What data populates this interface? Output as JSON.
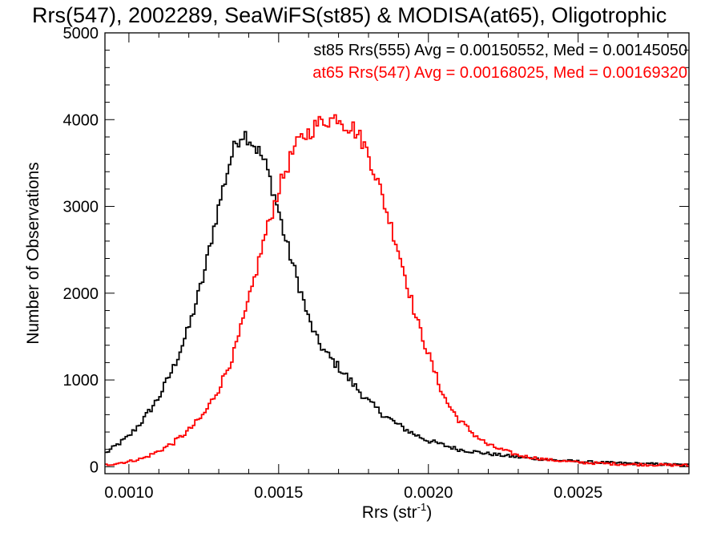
{
  "chart_data": {
    "type": "line",
    "title": "Rrs(547), 2002289, SeaWiFS(st85) & MODISA(at65), Oligotrophic",
    "xlabel_main": "Rrs (str",
    "xlabel_sup": "-1",
    "xlabel_close": ")",
    "ylabel": "Number of Observations",
    "xlim": [
      0.00092,
      0.00287
    ],
    "ylim": [
      -80,
      5000
    ],
    "x_ticks": [
      {
        "value": 0.001,
        "label": "0.0010"
      },
      {
        "value": 0.0015,
        "label": "0.0015"
      },
      {
        "value": 0.002,
        "label": "0.0020"
      },
      {
        "value": 0.0025,
        "label": "0.0025"
      }
    ],
    "y_ticks": [
      {
        "value": 0,
        "label": "0"
      },
      {
        "value": 1000,
        "label": "1000"
      },
      {
        "value": 2000,
        "label": "2000"
      },
      {
        "value": 3000,
        "label": "3000"
      },
      {
        "value": 4000,
        "label": "4000"
      },
      {
        "value": 5000,
        "label": "5000"
      }
    ],
    "legend": [
      {
        "text": "st85 Rrs(555) Avg = 0.00150552, Med = 0.00145050",
        "color": "#000000"
      },
      {
        "text": "at65 Rrs(547) Avg = 0.00168025, Med = 0.00169320",
        "color": "#ff0000"
      }
    ],
    "series": [
      {
        "color": "#000000",
        "x": [
          0.00092,
          0.001,
          0.00105,
          0.0011,
          0.00115,
          0.0012,
          0.00125,
          0.00128,
          0.00131,
          0.00134,
          0.00136,
          0.00138,
          0.0014,
          0.00142,
          0.00144,
          0.00146,
          0.00148,
          0.0015,
          0.00152,
          0.00155,
          0.00158,
          0.0016,
          0.00163,
          0.00166,
          0.0017,
          0.00175,
          0.0018,
          0.00185,
          0.0019,
          0.00195,
          0.002,
          0.0021,
          0.0022,
          0.0023,
          0.0024,
          0.0025,
          0.0026,
          0.0027,
          0.0028,
          0.00287
        ],
        "y": [
          150,
          350,
          550,
          800,
          1150,
          1600,
          2200,
          2700,
          3150,
          3550,
          3750,
          3850,
          3800,
          3700,
          3600,
          3450,
          3200,
          2950,
          2650,
          2300,
          1950,
          1700,
          1450,
          1300,
          1150,
          950,
          750,
          600,
          480,
          380,
          300,
          200,
          150,
          110,
          80,
          60,
          45,
          35,
          25,
          20
        ]
      },
      {
        "color": "#ff0000",
        "x": [
          0.00092,
          0.001,
          0.00105,
          0.0011,
          0.00115,
          0.0012,
          0.00125,
          0.0013,
          0.00135,
          0.0014,
          0.00145,
          0.0015,
          0.00155,
          0.00158,
          0.0016,
          0.00163,
          0.00166,
          0.00168,
          0.0017,
          0.00172,
          0.00175,
          0.00178,
          0.0018,
          0.00183,
          0.00186,
          0.0019,
          0.00193,
          0.00196,
          0.002,
          0.00203,
          0.00206,
          0.0021,
          0.00215,
          0.0022,
          0.0023,
          0.0024,
          0.0025,
          0.0026,
          0.0027,
          0.0028,
          0.00287
        ],
        "y": [
          20,
          60,
          100,
          180,
          280,
          420,
          600,
          900,
          1300,
          1900,
          2600,
          3200,
          3650,
          3800,
          3850,
          3950,
          4000,
          4000,
          4050,
          3950,
          3900,
          3750,
          3600,
          3300,
          2950,
          2500,
          2100,
          1700,
          1300,
          1000,
          750,
          550,
          380,
          250,
          130,
          80,
          50,
          35,
          25,
          20,
          15
        ]
      }
    ]
  }
}
